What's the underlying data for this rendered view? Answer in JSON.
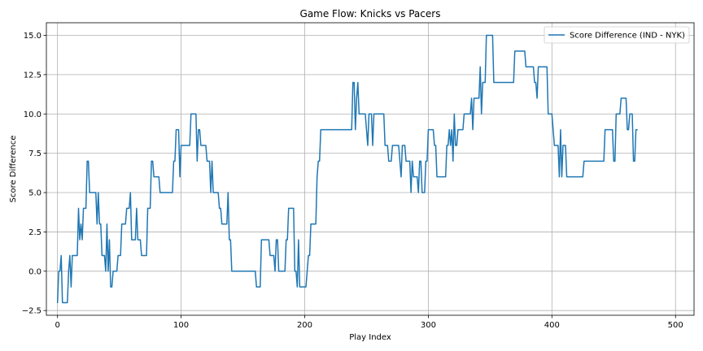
{
  "chart_data": {
    "type": "line",
    "title": "Game Flow: Knicks vs Pacers",
    "xlabel": "Play Index",
    "ylabel": "Score Difference",
    "xlim": [
      -9,
      515
    ],
    "ylim": [
      -2.8,
      15.8
    ],
    "xticks": [
      0,
      100,
      200,
      300,
      400,
      500
    ],
    "yticks": [
      -2.5,
      0.0,
      2.5,
      5.0,
      7.5,
      10.0,
      12.5,
      15.0
    ],
    "ytick_labels": [
      "−2.5",
      "0.0",
      "2.5",
      "5.0",
      "7.5",
      "10.0",
      "12.5",
      "15.0"
    ],
    "grid": true,
    "legend_position": "top-right",
    "series": [
      {
        "name": "Score Difference (IND - NYK)",
        "color": "#1f77b4",
        "points": [
          [
            0,
            -2
          ],
          [
            1,
            0
          ],
          [
            2,
            0
          ],
          [
            3,
            1
          ],
          [
            4,
            -2
          ],
          [
            7,
            -2
          ],
          [
            8,
            -2
          ],
          [
            9,
            0
          ],
          [
            10,
            1
          ],
          [
            11,
            -1
          ],
          [
            12,
            1
          ],
          [
            16,
            1
          ],
          [
            17,
            4
          ],
          [
            18,
            2
          ],
          [
            19,
            3
          ],
          [
            20,
            2
          ],
          [
            21,
            4
          ],
          [
            23,
            4
          ],
          [
            24,
            7
          ],
          [
            25,
            7
          ],
          [
            26,
            5
          ],
          [
            27,
            5
          ],
          [
            31,
            5
          ],
          [
            32,
            3
          ],
          [
            33,
            5
          ],
          [
            34,
            3
          ],
          [
            35,
            3
          ],
          [
            36,
            1
          ],
          [
            38,
            1
          ],
          [
            39,
            0
          ],
          [
            40,
            3
          ],
          [
            41,
            0
          ],
          [
            42,
            2
          ],
          [
            43,
            -1
          ],
          [
            44,
            -1
          ],
          [
            45,
            0
          ],
          [
            48,
            0
          ],
          [
            49,
            1
          ],
          [
            51,
            1
          ],
          [
            52,
            3
          ],
          [
            55,
            3
          ],
          [
            56,
            4
          ],
          [
            58,
            4
          ],
          [
            59,
            5
          ],
          [
            60,
            2
          ],
          [
            63,
            2
          ],
          [
            64,
            4
          ],
          [
            65,
            2
          ],
          [
            67,
            2
          ],
          [
            68,
            1
          ],
          [
            72,
            1
          ],
          [
            73,
            4
          ],
          [
            75,
            4
          ],
          [
            76,
            7
          ],
          [
            77,
            7
          ],
          [
            78,
            6
          ],
          [
            82,
            6
          ],
          [
            83,
            5
          ],
          [
            93,
            5
          ],
          [
            94,
            7
          ],
          [
            95,
            7
          ],
          [
            96,
            9
          ],
          [
            98,
            9
          ],
          [
            99,
            6
          ],
          [
            100,
            8
          ],
          [
            107,
            8
          ],
          [
            108,
            10
          ],
          [
            112,
            10
          ],
          [
            113,
            7
          ],
          [
            114,
            9
          ],
          [
            115,
            9
          ],
          [
            116,
            8
          ],
          [
            120,
            8
          ],
          [
            121,
            7
          ],
          [
            123,
            7
          ],
          [
            124,
            5
          ],
          [
            125,
            7
          ],
          [
            126,
            5
          ],
          [
            130,
            5
          ],
          [
            131,
            4
          ],
          [
            132,
            4
          ],
          [
            133,
            3
          ],
          [
            137,
            3
          ],
          [
            138,
            5
          ],
          [
            139,
            2
          ],
          [
            140,
            2
          ],
          [
            141,
            0
          ],
          [
            160,
            0
          ],
          [
            161,
            -1
          ],
          [
            164,
            -1
          ],
          [
            165,
            2
          ],
          [
            171,
            2
          ],
          [
            172,
            1
          ],
          [
            175,
            1
          ],
          [
            176,
            0
          ],
          [
            177,
            2
          ],
          [
            178,
            2
          ],
          [
            179,
            0
          ],
          [
            184,
            0
          ],
          [
            185,
            2
          ],
          [
            186,
            2
          ],
          [
            187,
            4
          ],
          [
            191,
            4
          ],
          [
            192,
            0
          ],
          [
            193,
            0
          ],
          [
            194,
            -1
          ],
          [
            195,
            2
          ],
          [
            196,
            -1
          ],
          [
            201,
            -1
          ],
          [
            202,
            0
          ],
          [
            203,
            1
          ],
          [
            204,
            1
          ],
          [
            205,
            3
          ],
          [
            209,
            3
          ],
          [
            210,
            6
          ],
          [
            211,
            7
          ],
          [
            212,
            7
          ],
          [
            213,
            9
          ],
          [
            227,
            9
          ],
          [
            238,
            9
          ],
          [
            239,
            12
          ],
          [
            240,
            12
          ],
          [
            241,
            9
          ],
          [
            242,
            11
          ],
          [
            243,
            12
          ],
          [
            244,
            10
          ],
          [
            249,
            10
          ],
          [
            250,
            9
          ],
          [
            251,
            8
          ],
          [
            252,
            10
          ],
          [
            254,
            10
          ],
          [
            255,
            8
          ],
          [
            256,
            10
          ],
          [
            264,
            10
          ],
          [
            265,
            8
          ],
          [
            267,
            8
          ],
          [
            268,
            7
          ],
          [
            270,
            7
          ],
          [
            271,
            8
          ],
          [
            276,
            8
          ],
          [
            277,
            7
          ],
          [
            278,
            6
          ],
          [
            279,
            8
          ],
          [
            281,
            8
          ],
          [
            282,
            7
          ],
          [
            285,
            7
          ],
          [
            286,
            5
          ],
          [
            287,
            7
          ],
          [
            288,
            6
          ],
          [
            291,
            6
          ],
          [
            292,
            5
          ],
          [
            293,
            7
          ],
          [
            294,
            7
          ],
          [
            295,
            5
          ],
          [
            297,
            5
          ],
          [
            298,
            7
          ],
          [
            299,
            7
          ],
          [
            300,
            9
          ],
          [
            304,
            9
          ],
          [
            305,
            8
          ],
          [
            306,
            8
          ],
          [
            307,
            6
          ],
          [
            314,
            6
          ],
          [
            315,
            8
          ],
          [
            316,
            8
          ],
          [
            317,
            9
          ],
          [
            318,
            8
          ],
          [
            319,
            9
          ],
          [
            320,
            7
          ],
          [
            321,
            10
          ],
          [
            322,
            8
          ],
          [
            323,
            8
          ],
          [
            324,
            9
          ],
          [
            328,
            9
          ],
          [
            329,
            10
          ],
          [
            334,
            10
          ],
          [
            335,
            11
          ],
          [
            336,
            9
          ],
          [
            337,
            11
          ],
          [
            341,
            11
          ],
          [
            342,
            13
          ],
          [
            343,
            10
          ],
          [
            344,
            12
          ],
          [
            346,
            12
          ],
          [
            347,
            15
          ],
          [
            352,
            15
          ],
          [
            353,
            12
          ],
          [
            363,
            12
          ],
          [
            369,
            12
          ],
          [
            370,
            14
          ],
          [
            378,
            14
          ],
          [
            379,
            13
          ],
          [
            385,
            13
          ],
          [
            386,
            12
          ],
          [
            387,
            12
          ],
          [
            388,
            11
          ],
          [
            389,
            13
          ],
          [
            396,
            13
          ],
          [
            397,
            10
          ],
          [
            400,
            10
          ],
          [
            401,
            9
          ],
          [
            402,
            8
          ],
          [
            405,
            8
          ],
          [
            406,
            6
          ],
          [
            407,
            9
          ],
          [
            408,
            6
          ],
          [
            409,
            8
          ],
          [
            411,
            8
          ],
          [
            412,
            6
          ],
          [
            425,
            6
          ],
          [
            426,
            7
          ],
          [
            442,
            7
          ],
          [
            443,
            9
          ],
          [
            449,
            9
          ],
          [
            450,
            7
          ],
          [
            451,
            7
          ],
          [
            452,
            10
          ],
          [
            455,
            10
          ],
          [
            456,
            11
          ],
          [
            460,
            11
          ],
          [
            461,
            9
          ],
          [
            462,
            9
          ],
          [
            463,
            10
          ],
          [
            465,
            10
          ],
          [
            466,
            7
          ],
          [
            467,
            7
          ],
          [
            468,
            9
          ],
          [
            469,
            9
          ]
        ]
      }
    ]
  }
}
